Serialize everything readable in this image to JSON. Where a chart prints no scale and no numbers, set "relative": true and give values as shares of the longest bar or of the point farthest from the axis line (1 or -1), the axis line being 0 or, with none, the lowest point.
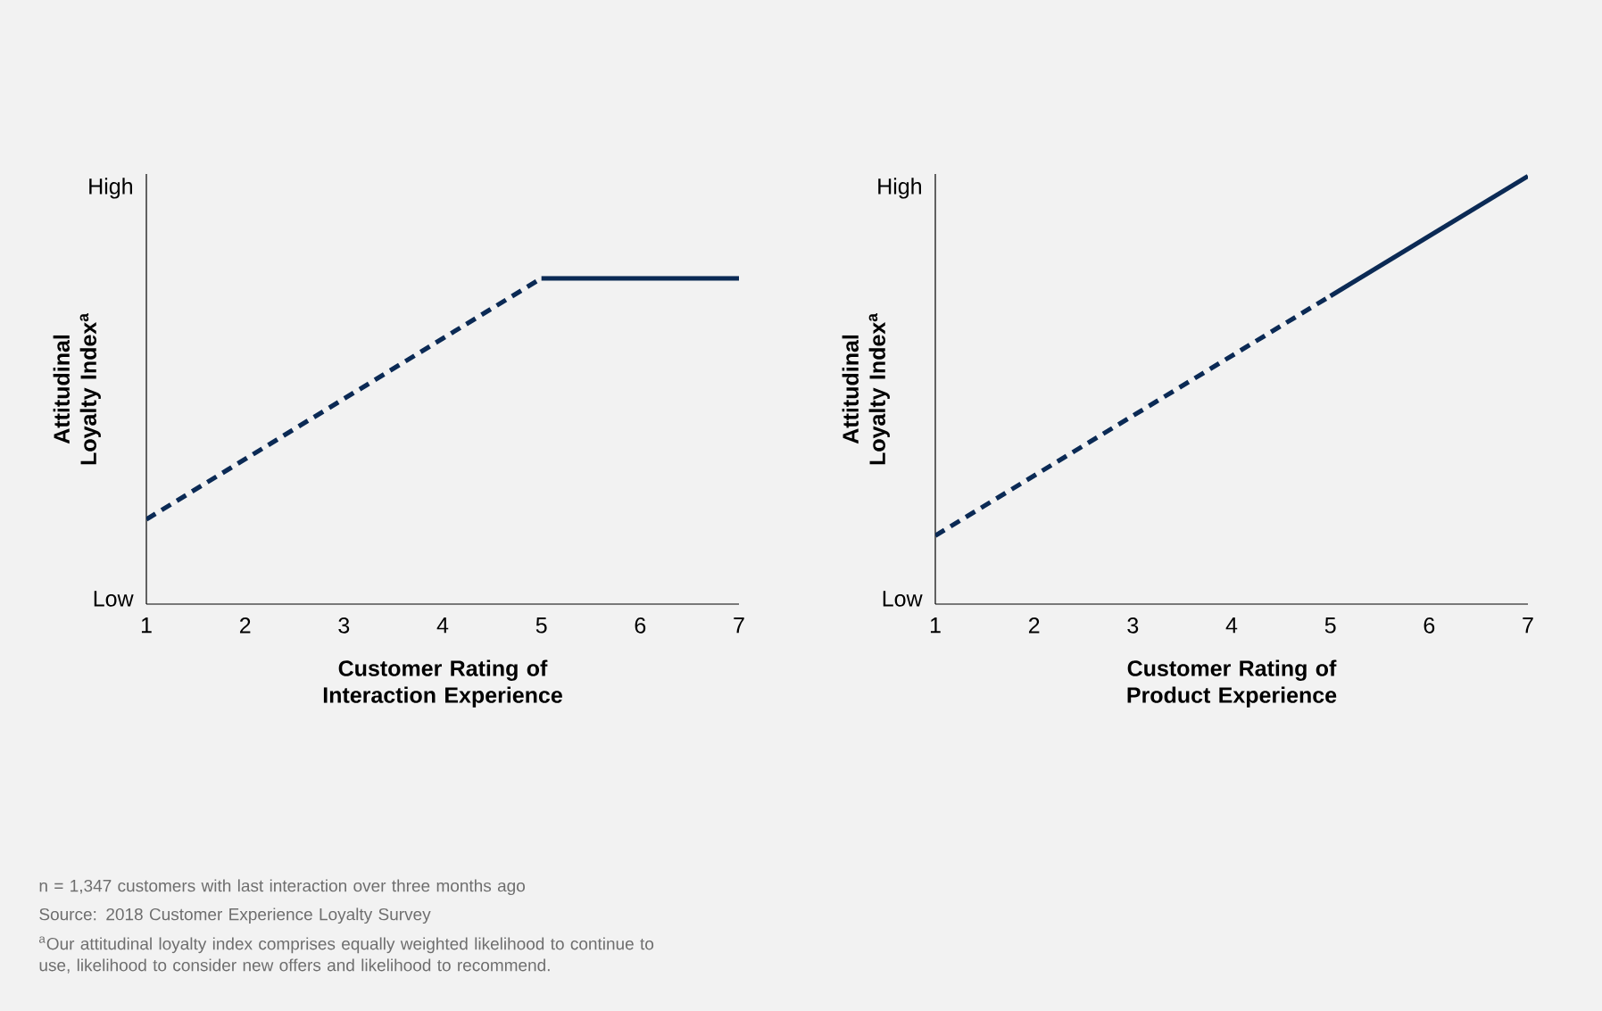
{
  "chart_data": [
    {
      "type": "line",
      "relative": true,
      "xlabel": "Customer Rating of Interaction Experience",
      "ylabel": "Attitudinal Loyalty Index$^{a}$",
      "xlim": [
        1,
        7
      ],
      "xticks": [
        1,
        2,
        3,
        4,
        5,
        6,
        7
      ],
      "grid": false,
      "legend": false,
      "marker": "none",
      "series": [
        {
          "color": "#0b2a55",
          "x": [
            1,
            5
          ],
          "values": [
            0.26,
            1
          ],
          "line_style": "dashed"
        },
        {
          "color": "#0b2a55",
          "x": [
            5,
            7
          ],
          "values": [
            1,
            1
          ],
          "line_style": "solid"
        }
      ],
      "annotations": [
        "Low",
        "High",
        "n = 1,347 customers with last interaction over three months ago",
        "Source: 2018 Customer Experience Loyalty Survey",
        "$^{a}$Our attitudinal loyalty index comprises equally weighted likelihood to continue to use, likelihood to consider new offers and likelihood to recommend."
      ]
    },
    {
      "type": "line",
      "relative": true,
      "xlabel": "Customer Rating of Product Experience",
      "ylabel": "Attitudinal Loyalty Index$^{a}$",
      "xlim": [
        1,
        7
      ],
      "xticks": [
        1,
        2,
        3,
        4,
        5,
        6,
        7
      ],
      "grid": false,
      "legend": false,
      "marker": "none",
      "series": [
        {
          "color": "#0b2a55",
          "x": [
            1,
            5
          ],
          "values": [
            0.16,
            0.72
          ],
          "line_style": "dashed"
        },
        {
          "color": "#0b2a55",
          "x": [
            5,
            7
          ],
          "values": [
            0.72,
            1
          ],
          "line_style": "solid"
        }
      ],
      "annotations": [
        "Low",
        "High"
      ]
    }
  ]
}
